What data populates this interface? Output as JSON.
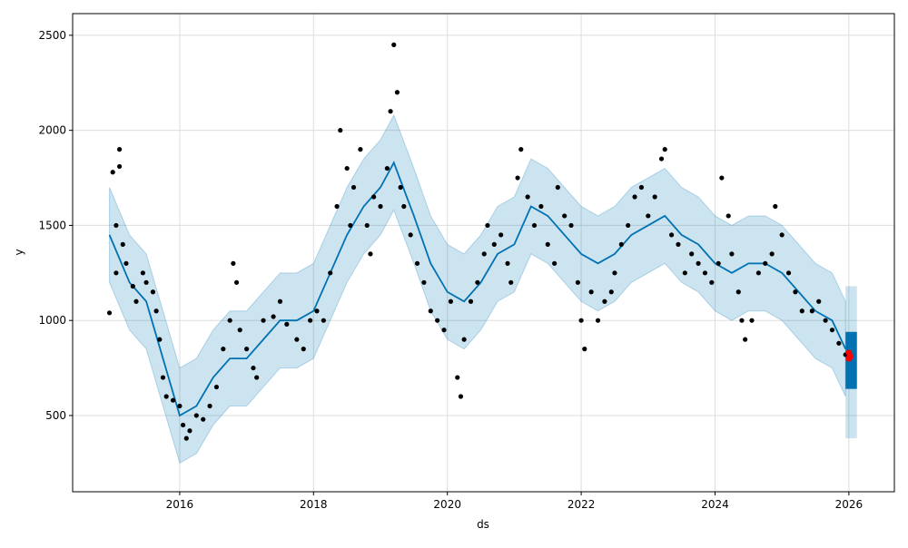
{
  "chart_data": {
    "type": "line",
    "title": "",
    "xlabel": "ds",
    "ylabel": "y",
    "xlim": [
      2014.4,
      2026.68
    ],
    "ylim": [
      99,
      2614
    ],
    "grid": true,
    "x_ticks": [
      2016,
      2018,
      2020,
      2022,
      2024,
      2026
    ],
    "x_tick_labels": [
      "2016",
      "2018",
      "2020",
      "2022",
      "2024",
      "2026"
    ],
    "y_ticks": [
      500,
      1000,
      1500,
      2000,
      2500
    ],
    "y_tick_labels": [
      "500",
      "1000",
      "1500",
      "2000",
      "2500"
    ],
    "colors": {
      "forecast": "#0072B2",
      "band": "#0072B2",
      "observed": "#000000",
      "highlight": "#ff0000",
      "grid": "#dddddd"
    },
    "forecast": {
      "name": "yhat",
      "band_halfwidth": 250,
      "points": [
        [
          2014.95,
          1450
        ],
        [
          2015.25,
          1200
        ],
        [
          2015.5,
          1100
        ],
        [
          2015.75,
          800
        ],
        [
          2016.0,
          500
        ],
        [
          2016.25,
          550
        ],
        [
          2016.5,
          700
        ],
        [
          2016.75,
          800
        ],
        [
          2017.0,
          800
        ],
        [
          2017.25,
          900
        ],
        [
          2017.5,
          1000
        ],
        [
          2017.75,
          1000
        ],
        [
          2018.0,
          1050
        ],
        [
          2018.25,
          1250
        ],
        [
          2018.5,
          1450
        ],
        [
          2018.75,
          1600
        ],
        [
          2019.0,
          1700
        ],
        [
          2019.2,
          1830
        ],
        [
          2019.5,
          1550
        ],
        [
          2019.75,
          1300
        ],
        [
          2020.0,
          1150
        ],
        [
          2020.25,
          1100
        ],
        [
          2020.5,
          1200
        ],
        [
          2020.75,
          1350
        ],
        [
          2021.0,
          1400
        ],
        [
          2021.25,
          1600
        ],
        [
          2021.5,
          1550
        ],
        [
          2021.75,
          1450
        ],
        [
          2022.0,
          1350
        ],
        [
          2022.25,
          1300
        ],
        [
          2022.5,
          1350
        ],
        [
          2022.75,
          1450
        ],
        [
          2023.0,
          1500
        ],
        [
          2023.25,
          1550
        ],
        [
          2023.5,
          1450
        ],
        [
          2023.75,
          1400
        ],
        [
          2024.0,
          1300
        ],
        [
          2024.25,
          1250
        ],
        [
          2024.5,
          1300
        ],
        [
          2024.75,
          1300
        ],
        [
          2025.0,
          1250
        ],
        [
          2025.25,
          1150
        ],
        [
          2025.5,
          1050
        ],
        [
          2025.75,
          1000
        ],
        [
          2025.95,
          850
        ]
      ]
    },
    "future": {
      "x_range": [
        2025.95,
        2026.12
      ],
      "yhat_range": [
        640,
        940
      ],
      "interval_range": [
        380,
        1180
      ]
    },
    "observed": [
      [
        2014.95,
        1040
      ],
      [
        2015.0,
        1780
      ],
      [
        2015.05,
        1500
      ],
      [
        2015.1,
        1900
      ],
      [
        2015.1,
        1810
      ],
      [
        2015.05,
        1250
      ],
      [
        2015.15,
        1400
      ],
      [
        2015.2,
        1300
      ],
      [
        2015.3,
        1180
      ],
      [
        2015.35,
        1100
      ],
      [
        2015.45,
        1250
      ],
      [
        2015.5,
        1200
      ],
      [
        2015.6,
        1150
      ],
      [
        2015.65,
        1050
      ],
      [
        2015.7,
        900
      ],
      [
        2015.75,
        700
      ],
      [
        2015.8,
        600
      ],
      [
        2015.9,
        580
      ],
      [
        2016.0,
        550
      ],
      [
        2016.05,
        450
      ],
      [
        2016.1,
        380
      ],
      [
        2016.15,
        420
      ],
      [
        2016.25,
        500
      ],
      [
        2016.35,
        480
      ],
      [
        2016.45,
        550
      ],
      [
        2016.55,
        650
      ],
      [
        2016.65,
        850
      ],
      [
        2016.75,
        1000
      ],
      [
        2016.8,
        1300
      ],
      [
        2016.85,
        1200
      ],
      [
        2016.9,
        950
      ],
      [
        2017.0,
        850
      ],
      [
        2017.1,
        750
      ],
      [
        2017.15,
        700
      ],
      [
        2017.25,
        1000
      ],
      [
        2017.4,
        1020
      ],
      [
        2017.5,
        1100
      ],
      [
        2017.6,
        980
      ],
      [
        2017.75,
        900
      ],
      [
        2017.85,
        850
      ],
      [
        2017.95,
        1000
      ],
      [
        2018.05,
        1050
      ],
      [
        2018.15,
        1000
      ],
      [
        2018.25,
        1250
      ],
      [
        2018.35,
        1600
      ],
      [
        2018.4,
        2000
      ],
      [
        2018.5,
        1800
      ],
      [
        2018.55,
        1500
      ],
      [
        2018.6,
        1700
      ],
      [
        2018.7,
        1900
      ],
      [
        2018.8,
        1500
      ],
      [
        2018.85,
        1350
      ],
      [
        2018.9,
        1650
      ],
      [
        2019.0,
        1600
      ],
      [
        2019.1,
        1800
      ],
      [
        2019.15,
        2100
      ],
      [
        2019.2,
        2450
      ],
      [
        2019.25,
        2200
      ],
      [
        2019.3,
        1700
      ],
      [
        2019.35,
        1600
      ],
      [
        2019.45,
        1450
      ],
      [
        2019.55,
        1300
      ],
      [
        2019.65,
        1200
      ],
      [
        2019.75,
        1050
      ],
      [
        2019.85,
        1000
      ],
      [
        2019.95,
        950
      ],
      [
        2020.05,
        1100
      ],
      [
        2020.15,
        700
      ],
      [
        2020.2,
        600
      ],
      [
        2020.25,
        900
      ],
      [
        2020.35,
        1100
      ],
      [
        2020.45,
        1200
      ],
      [
        2020.55,
        1350
      ],
      [
        2020.6,
        1500
      ],
      [
        2020.7,
        1400
      ],
      [
        2020.8,
        1450
      ],
      [
        2020.9,
        1300
      ],
      [
        2020.95,
        1200
      ],
      [
        2021.05,
        1750
      ],
      [
        2021.1,
        1900
      ],
      [
        2021.2,
        1650
      ],
      [
        2021.3,
        1500
      ],
      [
        2021.4,
        1600
      ],
      [
        2021.5,
        1400
      ],
      [
        2021.6,
        1300
      ],
      [
        2021.65,
        1700
      ],
      [
        2021.75,
        1550
      ],
      [
        2021.85,
        1500
      ],
      [
        2021.95,
        1200
      ],
      [
        2022.0,
        1000
      ],
      [
        2022.05,
        850
      ],
      [
        2022.15,
        1150
      ],
      [
        2022.25,
        1000
      ],
      [
        2022.35,
        1100
      ],
      [
        2022.45,
        1150
      ],
      [
        2022.5,
        1250
      ],
      [
        2022.6,
        1400
      ],
      [
        2022.7,
        1500
      ],
      [
        2022.8,
        1650
      ],
      [
        2022.9,
        1700
      ],
      [
        2023.0,
        1550
      ],
      [
        2023.1,
        1650
      ],
      [
        2023.2,
        1850
      ],
      [
        2023.25,
        1900
      ],
      [
        2023.35,
        1450
      ],
      [
        2023.45,
        1400
      ],
      [
        2023.55,
        1250
      ],
      [
        2023.65,
        1350
      ],
      [
        2023.75,
        1300
      ],
      [
        2023.85,
        1250
      ],
      [
        2023.95,
        1200
      ],
      [
        2024.05,
        1300
      ],
      [
        2024.1,
        1750
      ],
      [
        2024.2,
        1550
      ],
      [
        2024.25,
        1350
      ],
      [
        2024.35,
        1150
      ],
      [
        2024.4,
        1000
      ],
      [
        2024.45,
        900
      ],
      [
        2024.55,
        1000
      ],
      [
        2024.65,
        1250
      ],
      [
        2024.75,
        1300
      ],
      [
        2024.85,
        1350
      ],
      [
        2024.9,
        1600
      ],
      [
        2025.0,
        1450
      ],
      [
        2025.1,
        1250
      ],
      [
        2025.2,
        1150
      ],
      [
        2025.3,
        1050
      ],
      [
        2025.45,
        1050
      ],
      [
        2025.55,
        1100
      ],
      [
        2025.65,
        1000
      ],
      [
        2025.75,
        950
      ],
      [
        2025.85,
        880
      ],
      [
        2025.95,
        820
      ]
    ],
    "highlighted": [
      [
        2026.0,
        800
      ],
      [
        2026.0,
        830
      ],
      [
        2026.02,
        810
      ]
    ]
  }
}
